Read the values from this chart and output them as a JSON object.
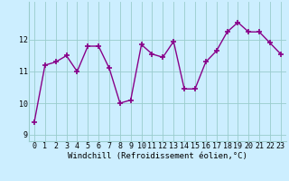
{
  "x": [
    0,
    1,
    2,
    3,
    4,
    5,
    6,
    7,
    8,
    9,
    10,
    11,
    12,
    13,
    14,
    15,
    16,
    17,
    18,
    19,
    20,
    21,
    22,
    23
  ],
  "y": [
    9.4,
    11.2,
    11.3,
    11.5,
    11.0,
    11.8,
    11.8,
    11.1,
    10.0,
    10.1,
    11.85,
    11.55,
    11.45,
    11.95,
    10.45,
    10.45,
    11.3,
    11.65,
    12.25,
    12.55,
    12.25,
    12.25,
    11.9,
    11.55
  ],
  "line_color": "#880088",
  "marker": "+",
  "markersize": 4,
  "linewidth": 1.0,
  "bg_color": "#cceeff",
  "grid_color": "#99cccc",
  "xlabel": "Windchill (Refroidissement éolien,°C)",
  "xlabel_fontsize": 6.5,
  "ylim": [
    8.8,
    13.2
  ],
  "yticks": [
    9,
    10,
    11,
    12
  ],
  "xticks": [
    0,
    1,
    2,
    3,
    4,
    5,
    6,
    7,
    8,
    9,
    10,
    11,
    12,
    13,
    14,
    15,
    16,
    17,
    18,
    19,
    20,
    21,
    22,
    23
  ],
  "tick_fontsize": 6.0
}
